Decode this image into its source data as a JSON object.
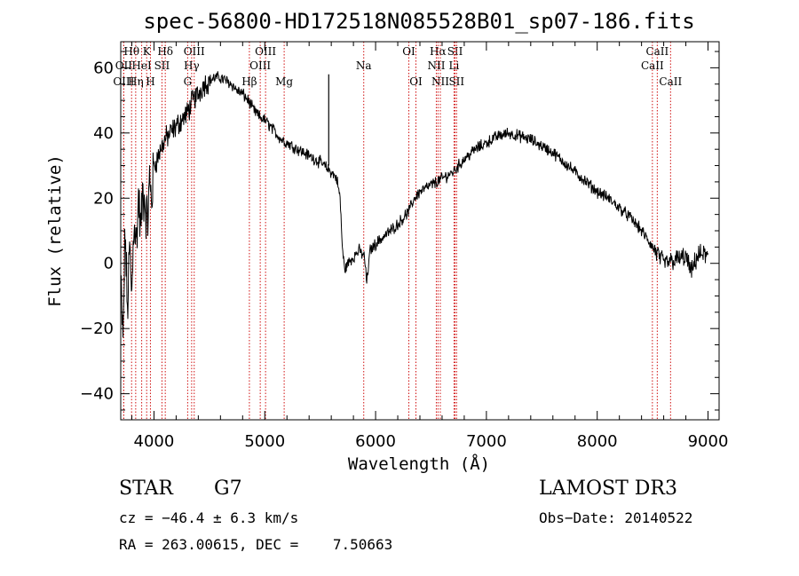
{
  "chart_data": {
    "type": "line",
    "title": "spec-56800-HD172518N085528B01_sp07-186.fits",
    "xlabel": "Wavelength (Å)",
    "ylabel": "Flux (relative)",
    "xlim": [
      3700,
      9100
    ],
    "ylim": [
      -48,
      68
    ],
    "xticks": [
      4000,
      5000,
      6000,
      7000,
      8000,
      9000
    ],
    "yticks": [
      -40,
      -20,
      0,
      20,
      40,
      60
    ],
    "grid": false,
    "spectrum_outline": {
      "x": [
        3700,
        3720,
        3740,
        3760,
        3780,
        3800,
        3820,
        3840,
        3860,
        3880,
        3900,
        3920,
        3940,
        3960,
        3980,
        4000,
        4030,
        4060,
        4100,
        4150,
        4200,
        4250,
        4300,
        4350,
        4400,
        4450,
        4500,
        4550,
        4600,
        4650,
        4700,
        4750,
        4800,
        4850,
        4900,
        4950,
        5000,
        5050,
        5100,
        5150,
        5200,
        5300,
        5400,
        5500,
        5600,
        5650,
        5680,
        5700,
        5720,
        5750,
        5800,
        5850,
        5900,
        5920,
        5950,
        6000,
        6100,
        6200,
        6300,
        6350,
        6400,
        6500,
        6600,
        6700,
        6800,
        6900,
        7000,
        7100,
        7200,
        7300,
        7400,
        7500,
        7600,
        7700,
        7800,
        7900,
        8000,
        8100,
        8200,
        8300,
        8400,
        8500,
        8600,
        8700,
        8800,
        8850,
        8900,
        8950,
        9000
      ],
      "y": [
        -5,
        -25,
        10,
        -15,
        5,
        -10,
        15,
        5,
        20,
        10,
        22,
        18,
        12,
        25,
        20,
        30,
        32,
        35,
        38,
        40,
        42,
        44,
        46,
        50,
        52,
        55,
        56,
        57,
        57,
        56,
        55,
        53,
        52,
        50,
        47,
        45,
        44,
        42,
        40,
        38,
        37,
        35,
        33,
        31,
        28,
        26,
        20,
        5,
        -2,
        0,
        2,
        4,
        2,
        -6,
        4,
        6,
        9,
        12,
        16,
        20,
        22,
        24,
        26,
        28,
        32,
        35,
        37,
        39,
        40,
        39,
        38,
        36,
        34,
        31,
        28,
        25,
        22,
        20,
        17,
        14,
        10,
        5,
        0,
        1,
        2,
        -3,
        2,
        3,
        2
      ]
    },
    "spike": {
      "x": 5577,
      "y_low": 30,
      "y_high": 58
    },
    "spectral_lines": [
      {
        "name": "Hθ",
        "wavelength": 3798,
        "row": 1
      },
      {
        "name": "OII",
        "wavelength": 3727,
        "row": 2
      },
      {
        "name": "OIII",
        "wavelength": 3727,
        "row": 3
      },
      {
        "name": "K",
        "wavelength": 3934,
        "row": 1
      },
      {
        "name": "HeI",
        "wavelength": 3889,
        "row": 2
      },
      {
        "name": "Hη",
        "wavelength": 3835,
        "row": 3
      },
      {
        "name": "H",
        "wavelength": 3968,
        "row": 3
      },
      {
        "name": "Hδ",
        "wavelength": 4102,
        "row": 1
      },
      {
        "name": "SII",
        "wavelength": 4072,
        "row": 2
      },
      {
        "name": "OIII",
        "wavelength": 4363,
        "row": 1
      },
      {
        "name": "Hγ",
        "wavelength": 4340,
        "row": 2
      },
      {
        "name": "G",
        "wavelength": 4304,
        "row": 3
      },
      {
        "name": "OIII",
        "wavelength": 5007,
        "row": 1
      },
      {
        "name": "OIII",
        "wavelength": 4959,
        "row": 2
      },
      {
        "name": "Hβ",
        "wavelength": 4861,
        "row": 3
      },
      {
        "name": "Mg",
        "wavelength": 5175,
        "row": 3
      },
      {
        "name": "Na",
        "wavelength": 5893,
        "row": 2
      },
      {
        "name": "OI",
        "wavelength": 6300,
        "row": 1
      },
      {
        "name": "OI",
        "wavelength": 6364,
        "row": 3
      },
      {
        "name": "Hα",
        "wavelength": 6563,
        "row": 1
      },
      {
        "name": "NII",
        "wavelength": 6548,
        "row": 2
      },
      {
        "name": "NII",
        "wavelength": 6584,
        "row": 3
      },
      {
        "name": "SII",
        "wavelength": 6717,
        "row": 1
      },
      {
        "name": "Li",
        "wavelength": 6708,
        "row": 2
      },
      {
        "name": "SII",
        "wavelength": 6731,
        "row": 3
      },
      {
        "name": "CaII",
        "wavelength": 8542,
        "row": 1
      },
      {
        "name": "CaII",
        "wavelength": 8498,
        "row": 2
      },
      {
        "name": "CaII",
        "wavelength": 8662,
        "row": 3
      }
    ]
  },
  "footer": {
    "object_class": "STAR",
    "subclass": "G7",
    "survey": "LAMOST DR3",
    "cz": "cz = −46.4 ± 6.3 km/s",
    "obs_date": "Obs−Date: 20140522",
    "radec": "RA = 263.00615, DEC =    7.50663"
  }
}
